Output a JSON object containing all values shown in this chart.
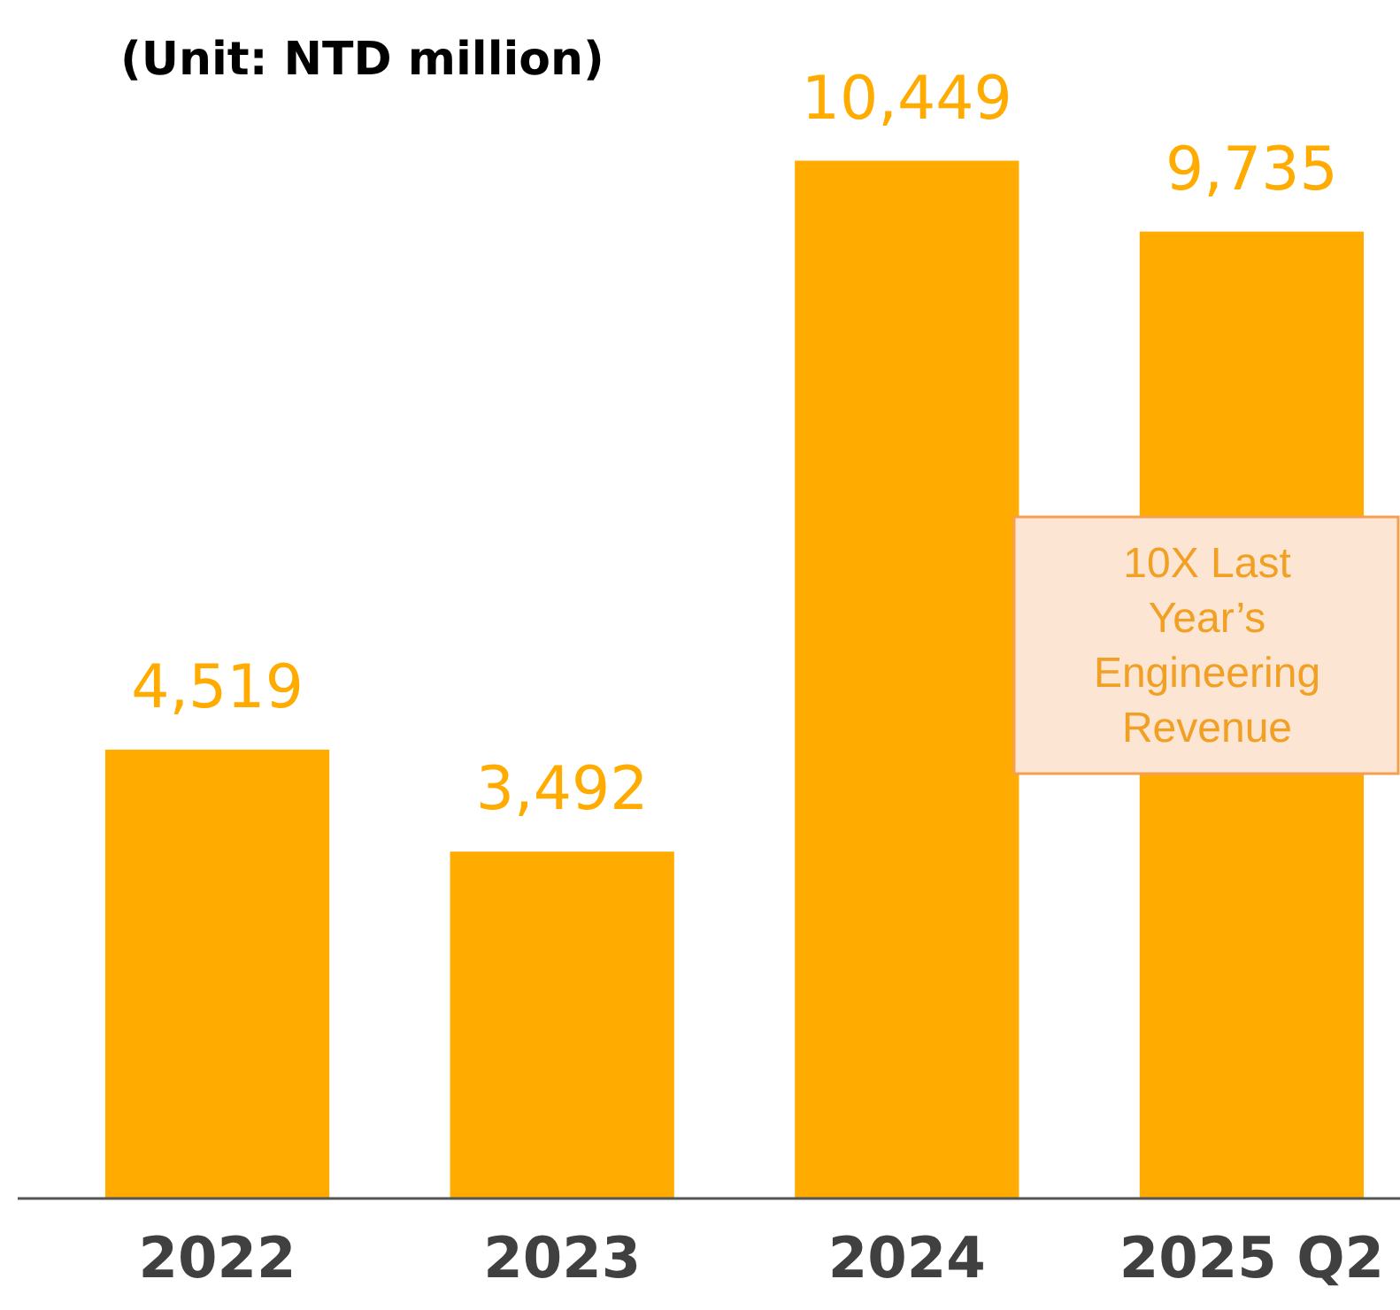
{
  "chart_data": {
    "type": "bar",
    "title": "(Unit: NTD million)",
    "categories": [
      "2022",
      "2023",
      "2024",
      "2025 Q2"
    ],
    "values": [
      4519,
      3492,
      10449,
      9735
    ],
    "color": "#ffab00",
    "value_labels": [
      "4,519",
      "3,492",
      "10,449",
      "9,735"
    ],
    "annotations": [
      "10X Last Year’s Engineering Revenue"
    ]
  }
}
